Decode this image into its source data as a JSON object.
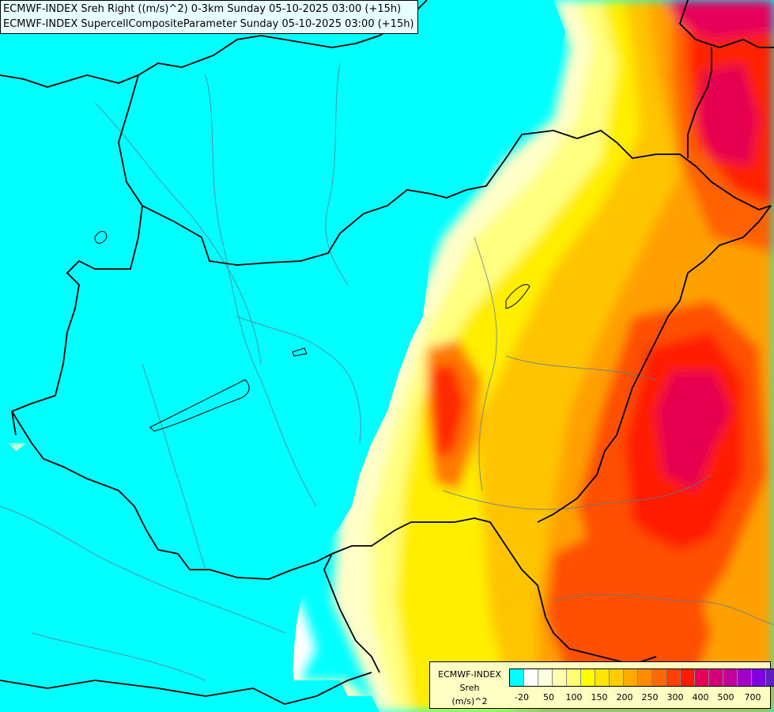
{
  "header": {
    "title_line1": "ECMWF-INDEX Sreh Right ((m/s)^2) 0-3km Sunday 05-10-2025 03:00 (+15h)",
    "title_line2": "ECMWF-INDEX SupercellCompositeParameter Sunday 05-10-2025 03:00 (+15h)"
  },
  "legend": {
    "model": "ECMWF-INDEX",
    "variable": "Sreh",
    "unit": "(m/s)^2",
    "swatch_colors": [
      "#00ffff",
      "#ffffff",
      "#ffffe0",
      "#ffffb0",
      "#ffff70",
      "#ffff00",
      "#ffe600",
      "#ffcc00",
      "#ffaa00",
      "#ff8c00",
      "#ff6a00",
      "#ff4000",
      "#ff1a00",
      "#e6005a",
      "#d4007a",
      "#c4009c",
      "#a000c8",
      "#8000e0",
      "#6020c0",
      "#3a1a9c",
      "#1a0a6e"
    ],
    "ticks": [
      "-20",
      "50",
      "100",
      "150",
      "200",
      "250",
      "300",
      "400",
      "500",
      "700"
    ]
  }
}
